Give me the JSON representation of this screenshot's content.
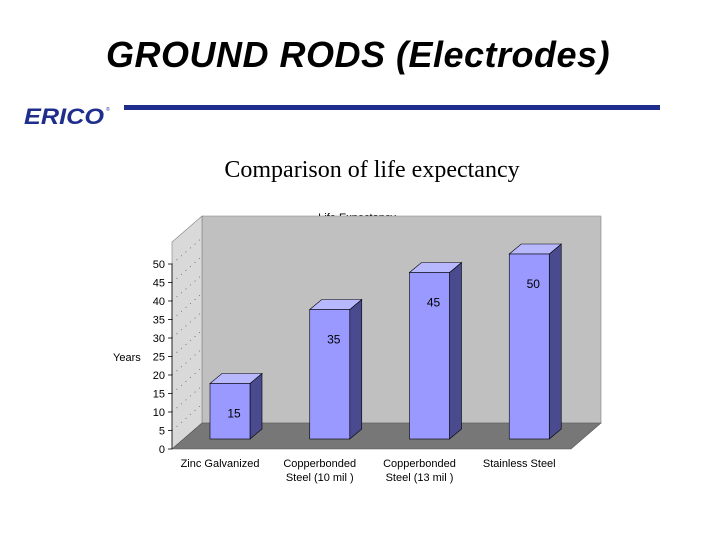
{
  "slide": {
    "title": "GROUND RODS (Electrodes)",
    "logo_text": "ERICO",
    "subtitle": "Comparison of life expectancy"
  },
  "colors": {
    "brand_blue": "#1f2e8c",
    "bar_face": "#9999ff",
    "bar_side": "#4a4a8e",
    "bar_top": "#b8b8ff",
    "wall": "#c0c0c0",
    "floor": "#777777"
  },
  "chart_data": {
    "type": "bar",
    "title": "Life Expectancy",
    "ylabel": "Years",
    "xlabel": "",
    "categories": [
      [
        "Zinc Galvanized"
      ],
      [
        "Copperbonded",
        "Steel (10 mil )"
      ],
      [
        "Copperbonded",
        "Steel (13 mil )"
      ],
      [
        "Stainless Steel"
      ]
    ],
    "values": [
      15,
      35,
      45,
      50
    ],
    "ylim": [
      0,
      50
    ],
    "yticks": [
      0,
      5,
      10,
      15,
      20,
      25,
      30,
      35,
      40,
      45,
      50
    ],
    "grid": false,
    "legend": "none",
    "three_d": true
  }
}
